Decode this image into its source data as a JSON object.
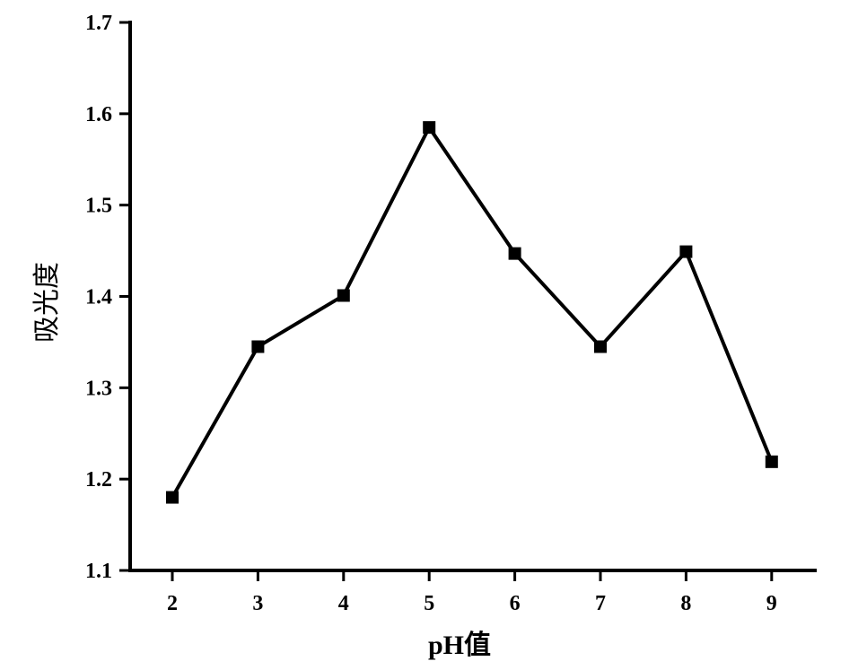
{
  "chart_data": {
    "type": "line",
    "xlabel": "pH值",
    "ylabel": "吸光度",
    "x": [
      2,
      3,
      4,
      5,
      6,
      7,
      8,
      9
    ],
    "series": [
      {
        "values": [
          1.18,
          1.345,
          1.401,
          1.585,
          1.447,
          1.345,
          1.449,
          1.219
        ]
      }
    ],
    "ylim": [
      1.1,
      1.7
    ],
    "yticks": [
      "1.1",
      "1.2",
      "1.3",
      "1.4",
      "1.5",
      "1.6",
      "1.7"
    ],
    "xticks": [
      "2",
      "3",
      "4",
      "5",
      "6",
      "7",
      "8",
      "9"
    ],
    "marker": "square",
    "line_color": "#000000",
    "grid": false,
    "legend": "none"
  }
}
